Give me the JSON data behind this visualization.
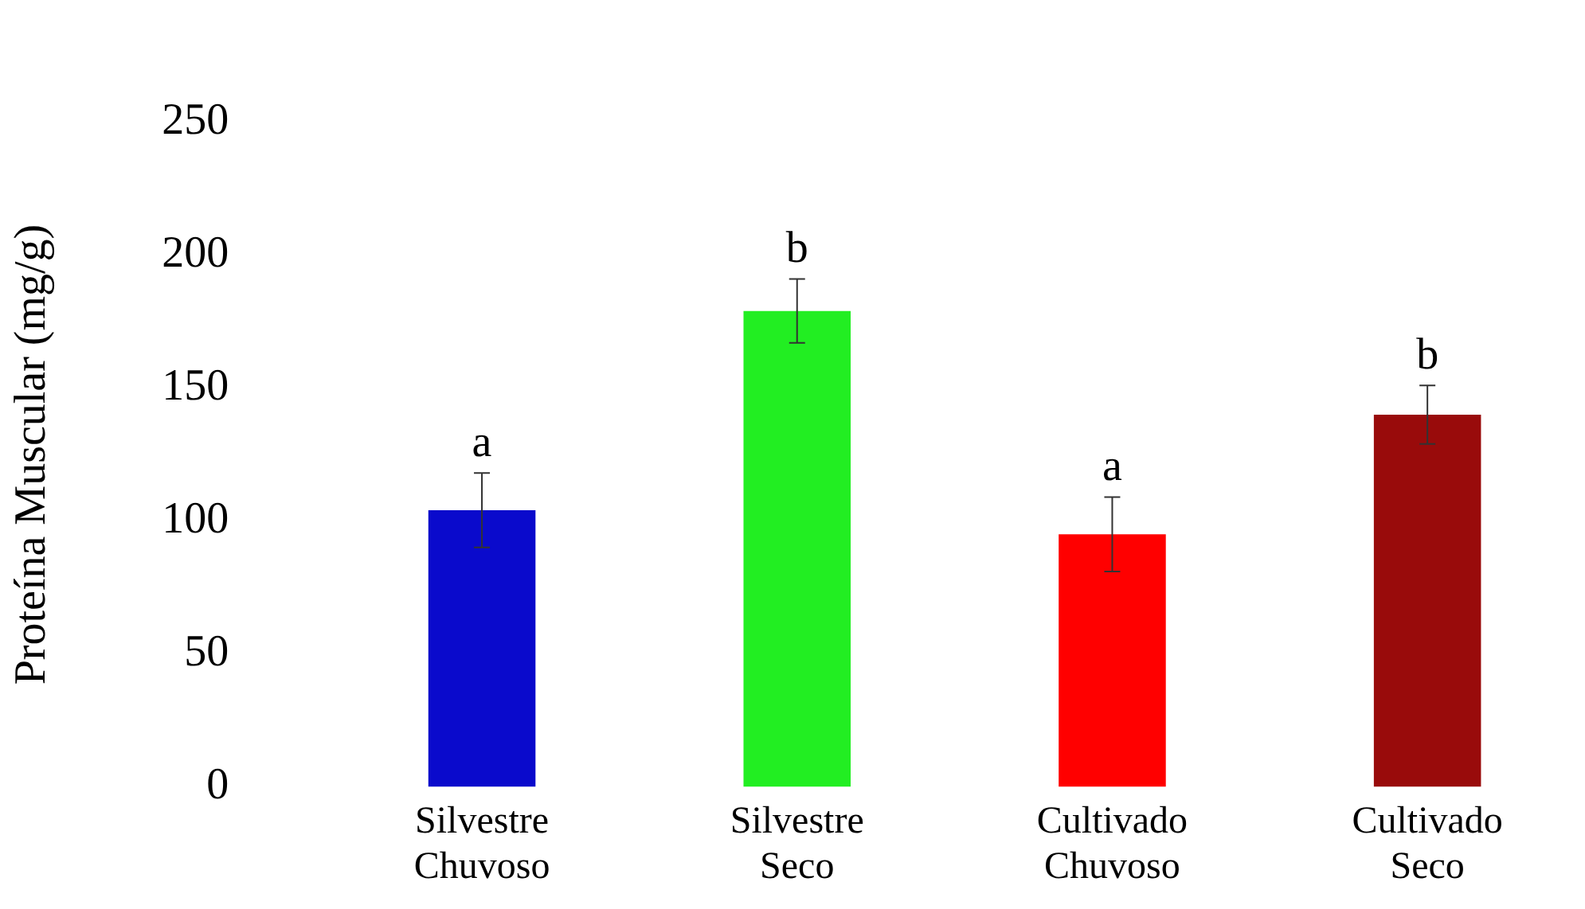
{
  "chart_data": {
    "type": "bar",
    "ylabel": "Proteína Muscular (mg/g)",
    "categories": [
      "Silvestre\nChuvoso",
      "Silvestre\nSeco",
      "Cultivado\nChuvoso",
      "Cultivado\nSeco"
    ],
    "values": [
      104,
      179,
      95,
      140
    ],
    "colors": [
      "#0a0acc",
      "#22ee22",
      "#ff0000",
      "#990b0b"
    ],
    "errors": [
      14,
      12,
      14,
      11
    ],
    "ylim": [
      0,
      250
    ],
    "yticks": [
      0,
      50,
      100,
      150,
      200,
      250
    ],
    "grid": false,
    "legend": false,
    "annotations": [
      {
        "text": "a",
        "x": "Silvestre\nChuvoso",
        "y": 118
      },
      {
        "text": "b",
        "x": "Silvestre\nSeco",
        "y": 191
      },
      {
        "text": "a",
        "x": "Cultivado\nChuvoso",
        "y": 109
      },
      {
        "text": "b",
        "x": "Cultivado\nSeco",
        "y": 151
      }
    ]
  }
}
